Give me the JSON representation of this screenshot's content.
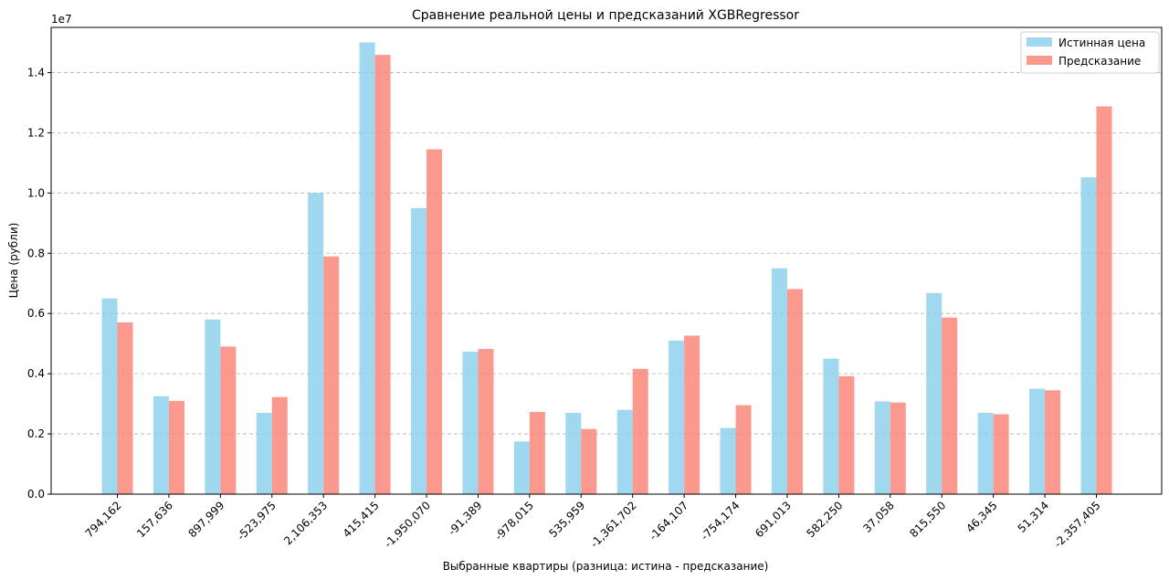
{
  "chart_data": {
    "type": "bar",
    "title": "Сравнение реальной цены и предсказаний XGBRegressor",
    "xlabel": "Выбранные квартиры (разница: истина - предсказание)",
    "ylabel": "Цена (рубли)",
    "y_scale_label": "1e7",
    "y_scale": 10000000,
    "ylim": [
      0,
      1.55
    ],
    "yticks": [
      0.0,
      0.2,
      0.4,
      0.6,
      0.8,
      1.0,
      1.2,
      1.4
    ],
    "ytick_labels": [
      "0.0",
      "0.2",
      "0.4",
      "0.6",
      "0.8",
      "1.0",
      "1.2",
      "1.4"
    ],
    "grid": "y-dashed",
    "legend_position": "top-right",
    "categories": [
      "794,162",
      "157,636",
      "897,999",
      "-523,975",
      "2,106,353",
      "415,415",
      "-1,950,070",
      "-91,389",
      "-978,015",
      "535,959",
      "-1,361,702",
      "-164,107",
      "-754,174",
      "691,013",
      "582,250",
      "37,058",
      "815,550",
      "46,345",
      "51,314",
      "-2,357,405"
    ],
    "series": [
      {
        "name": "Истинная цена",
        "color": "#87ceeb",
        "values": [
          6500000,
          3250000,
          5800000,
          2700000,
          10000000,
          15000000,
          9500000,
          4730000,
          1750000,
          2700000,
          2800000,
          5100000,
          2200000,
          7500000,
          4500000,
          3080000,
          6680000,
          2700000,
          3500000,
          10520000
        ]
      },
      {
        "name": "Предсказание",
        "color": "#fa8072",
        "values": [
          5705838,
          3092364,
          4902001,
          3223975,
          7893647,
          14584585,
          11450070,
          4821389,
          2728015,
          2164041,
          4161702,
          5264107,
          2954174,
          6808987,
          3917750,
          3042942,
          5864450,
          2653655,
          3448686,
          12877405
        ]
      }
    ]
  }
}
